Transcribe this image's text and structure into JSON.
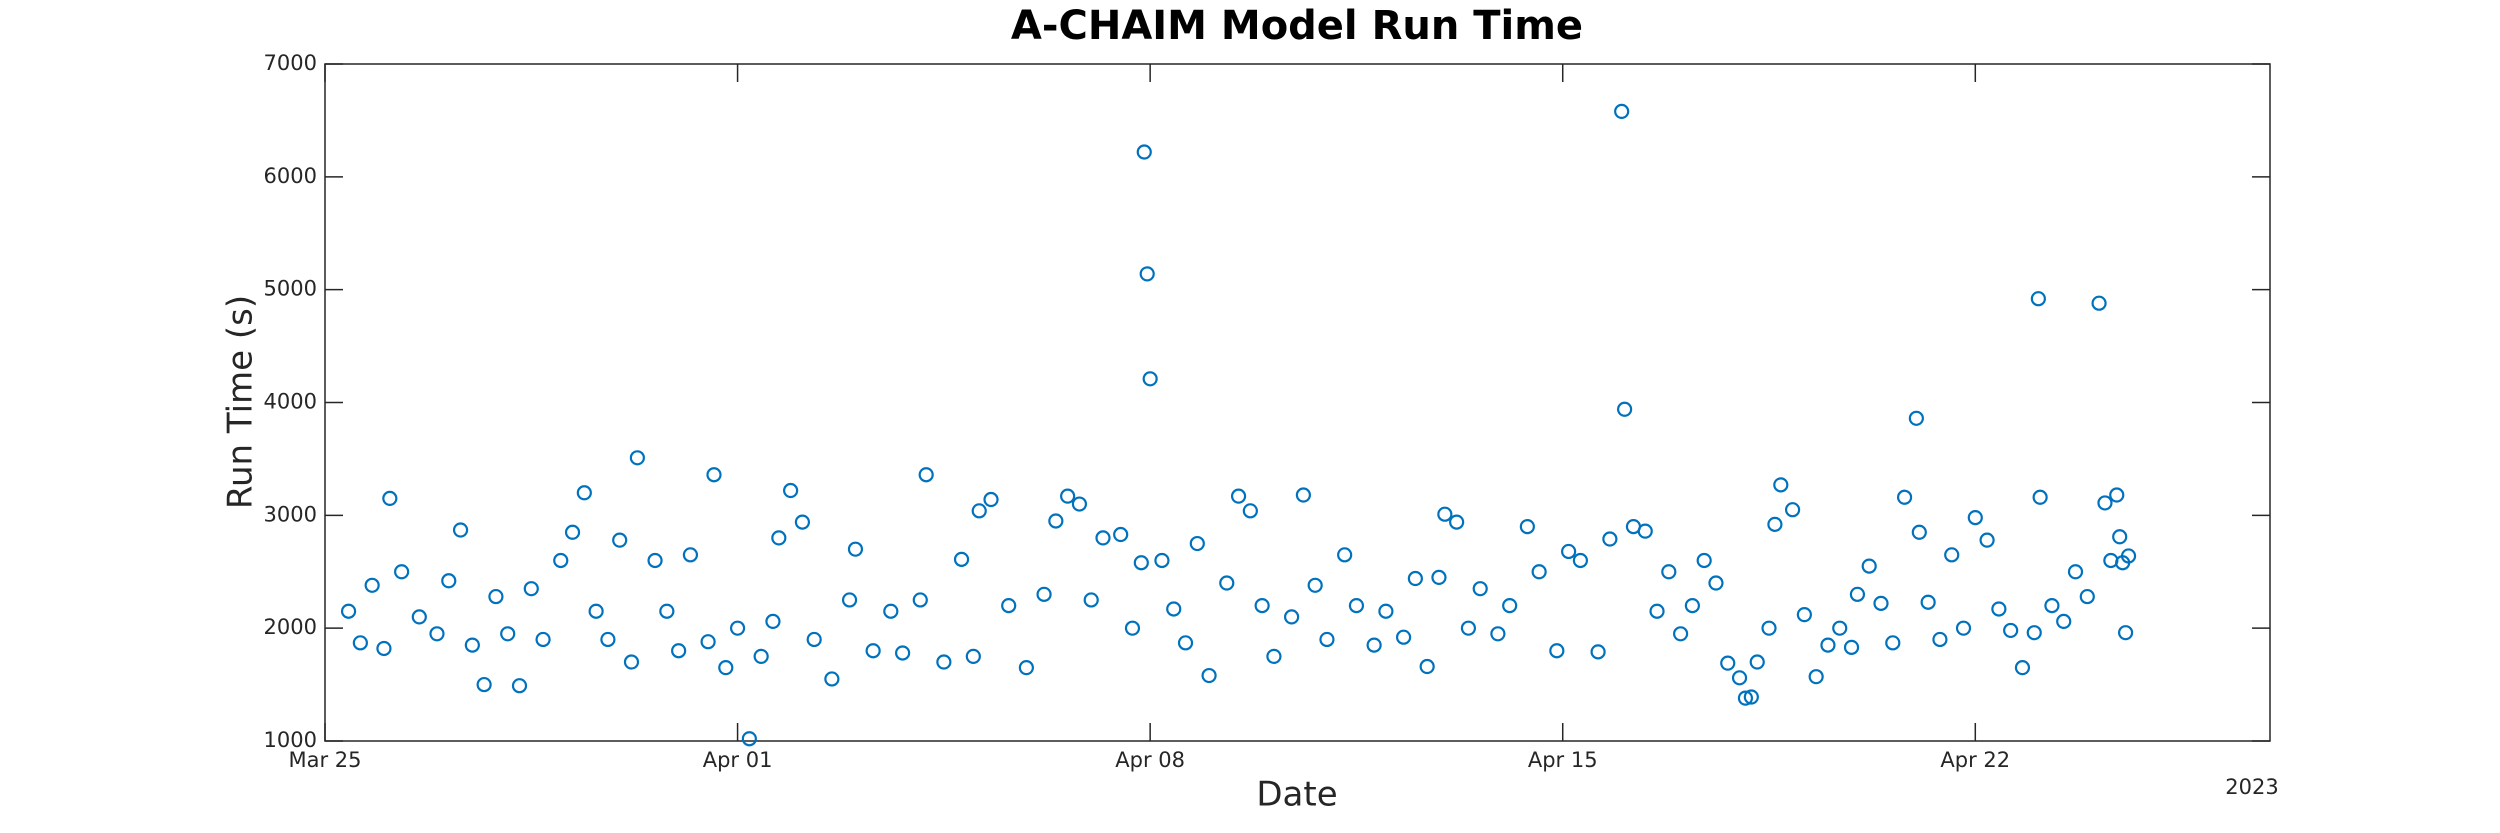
{
  "chart_data": {
    "type": "scatter",
    "title": "A-CHAIM Model Run Time",
    "xlabel": "Date",
    "ylabel": "Run Time (s)",
    "year_label": "2023",
    "color": "#0072bd",
    "xlim": [
      0,
      33
    ],
    "xticks": [
      {
        "value": 0,
        "label": "Mar 25"
      },
      {
        "value": 7,
        "label": "Apr 01"
      },
      {
        "value": 14,
        "label": "Apr 08"
      },
      {
        "value": 21,
        "label": "Apr 15"
      },
      {
        "value": 28,
        "label": "Apr 22"
      }
    ],
    "ylim": [
      1000,
      7000
    ],
    "yticks": [
      1000,
      2000,
      3000,
      4000,
      5000,
      6000,
      7000
    ],
    "series": [
      {
        "name": "Run Time",
        "x": [
          0.4,
          0.6,
          0.8,
          1.0,
          1.1,
          1.3,
          1.6,
          1.9,
          2.1,
          2.3,
          2.5,
          2.7,
          2.9,
          3.1,
          3.3,
          3.5,
          3.7,
          4.0,
          4.2,
          4.4,
          4.6,
          4.8,
          5.0,
          5.2,
          5.3,
          5.6,
          5.8,
          6.0,
          6.2,
          6.5,
          6.6,
          6.8,
          7.0,
          7.2,
          7.4,
          7.6,
          7.7,
          7.9,
          8.1,
          8.3,
          8.6,
          8.9,
          9.0,
          9.3,
          9.6,
          9.8,
          10.1,
          10.2,
          10.5,
          10.8,
          11.0,
          11.1,
          11.3,
          11.6,
          11.9,
          12.2,
          12.4,
          12.6,
          12.8,
          13.0,
          13.2,
          13.5,
          13.7,
          13.85,
          13.9,
          13.95,
          14.0,
          14.2,
          14.4,
          14.6,
          14.8,
          15.0,
          15.3,
          15.5,
          15.7,
          15.9,
          16.1,
          16.4,
          16.6,
          16.8,
          17.0,
          17.3,
          17.5,
          17.8,
          18.0,
          18.3,
          18.5,
          18.7,
          18.9,
          19.0,
          19.2,
          19.4,
          19.6,
          19.9,
          20.1,
          20.4,
          20.6,
          20.9,
          21.1,
          21.3,
          21.6,
          21.8,
          22.0,
          22.05,
          22.2,
          22.4,
          22.6,
          22.8,
          23.0,
          23.2,
          23.4,
          23.6,
          23.8,
          24.0,
          24.1,
          24.2,
          24.3,
          24.5,
          24.6,
          24.7,
          24.9,
          25.1,
          25.3,
          25.5,
          25.7,
          25.9,
          26.0,
          26.2,
          26.4,
          26.6,
          26.8,
          27.0,
          27.05,
          27.2,
          27.4,
          27.6,
          27.8,
          28.0,
          28.2,
          28.4,
          28.6,
          28.8,
          29.0,
          29.07,
          29.1,
          29.3,
          29.5,
          29.7,
          29.9,
          30.1,
          30.2,
          30.3,
          30.4,
          30.45,
          30.5,
          30.55,
          30.6
        ],
        "values": [
          2150,
          1870,
          2380,
          1820,
          3150,
          2500,
          2100,
          1950,
          2420,
          2870,
          1850,
          1500,
          2280,
          1950,
          1490,
          2350,
          1900,
          2600,
          2850,
          3200,
          2150,
          1900,
          2780,
          1700,
          3510,
          2600,
          2150,
          1800,
          2650,
          1880,
          3360,
          1650,
          2000,
          1020,
          1750,
          2060,
          2800,
          3220,
          2940,
          1900,
          1550,
          2250,
          2700,
          1800,
          2150,
          1780,
          2250,
          3360,
          1700,
          2610,
          1750,
          3040,
          3140,
          2200,
          1650,
          2300,
          2950,
          3170,
          3100,
          2250,
          2800,
          2830,
          2000,
          2580,
          6220,
          5140,
          4210,
          2600,
          2170,
          1870,
          2750,
          1580,
          2400,
          3170,
          3040,
          2200,
          1750,
          2100,
          3180,
          2380,
          1900,
          2650,
          2200,
          1850,
          2150,
          1920,
          2440,
          1660,
          2450,
          3010,
          2940,
          2000,
          2350,
          1950,
          2200,
          2900,
          2500,
          1800,
          2680,
          2600,
          1790,
          2790,
          6580,
          3940,
          2900,
          2860,
          2150,
          2500,
          1950,
          2200,
          2600,
          2400,
          1690,
          1560,
          1380,
          1390,
          1700,
          2000,
          2920,
          3270,
          3050,
          2120,
          1570,
          1850,
          2000,
          1830,
          2300,
          2550,
          2220,
          1870,
          3160,
          3860,
          2850,
          2230,
          1900,
          2650,
          2000,
          2980,
          2780,
          2170,
          1980,
          1650,
          1960,
          4920,
          3160,
          2200,
          2060,
          2500,
          2280,
          4880,
          3110,
          2600,
          3180,
          2810,
          2580,
          1960,
          2640
        ]
      }
    ]
  }
}
